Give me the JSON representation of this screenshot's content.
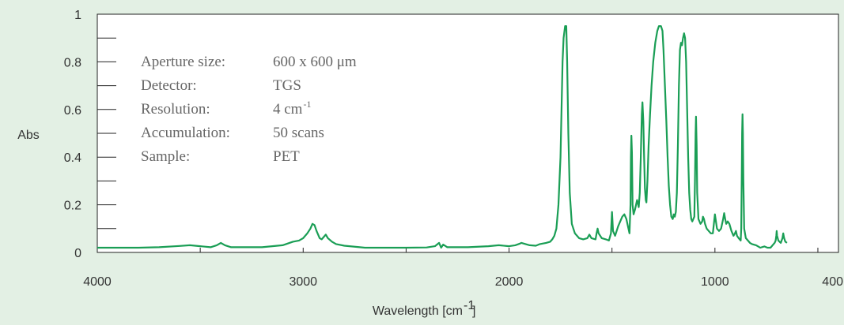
{
  "chart_data": {
    "type": "line",
    "title": "",
    "xlabel": "Wavelength [cm",
    "xlabel_sup": "-1",
    "xlabel_suffix": "]",
    "ylabel": "Abs",
    "xlim": [
      4000,
      400
    ],
    "ylim": [
      0,
      1
    ],
    "x_reversed": true,
    "x_ticks": [
      4000,
      3000,
      2000,
      1000,
      400
    ],
    "y_ticks": [
      0,
      0.2,
      0.4,
      0.6,
      0.8,
      1
    ],
    "x_tick_labels": [
      "4000",
      "3000",
      "2000",
      "1000",
      "400"
    ],
    "y_tick_labels": [
      "0",
      "0.2",
      "0.4",
      "0.6",
      "0.8",
      "1"
    ],
    "grid": false,
    "line_color": "#1a9e55",
    "series": [
      {
        "points": [
          [
            4000,
            0.02
          ],
          [
            3800,
            0.02
          ],
          [
            3700,
            0.022
          ],
          [
            3600,
            0.027
          ],
          [
            3550,
            0.03
          ],
          [
            3500,
            0.026
          ],
          [
            3450,
            0.022
          ],
          [
            3420,
            0.03
          ],
          [
            3400,
            0.04
          ],
          [
            3380,
            0.03
          ],
          [
            3350,
            0.022
          ],
          [
            3200,
            0.022
          ],
          [
            3100,
            0.03
          ],
          [
            3050,
            0.045
          ],
          [
            3020,
            0.05
          ],
          [
            3000,
            0.06
          ],
          [
            2980,
            0.08
          ],
          [
            2965,
            0.1
          ],
          [
            2955,
            0.12
          ],
          [
            2945,
            0.115
          ],
          [
            2935,
            0.09
          ],
          [
            2920,
            0.06
          ],
          [
            2910,
            0.055
          ],
          [
            2900,
            0.065
          ],
          [
            2890,
            0.075
          ],
          [
            2880,
            0.06
          ],
          [
            2860,
            0.045
          ],
          [
            2840,
            0.035
          ],
          [
            2800,
            0.028
          ],
          [
            2700,
            0.02
          ],
          [
            2500,
            0.02
          ],
          [
            2400,
            0.021
          ],
          [
            2360,
            0.026
          ],
          [
            2340,
            0.04
          ],
          [
            2330,
            0.02
          ],
          [
            2320,
            0.033
          ],
          [
            2300,
            0.022
          ],
          [
            2200,
            0.022
          ],
          [
            2100,
            0.026
          ],
          [
            2050,
            0.03
          ],
          [
            2000,
            0.026
          ],
          [
            1970,
            0.03
          ],
          [
            1950,
            0.036
          ],
          [
            1940,
            0.04
          ],
          [
            1920,
            0.035
          ],
          [
            1900,
            0.03
          ],
          [
            1870,
            0.028
          ],
          [
            1850,
            0.035
          ],
          [
            1820,
            0.04
          ],
          [
            1800,
            0.045
          ],
          [
            1790,
            0.055
          ],
          [
            1780,
            0.07
          ],
          [
            1770,
            0.1
          ],
          [
            1760,
            0.2
          ],
          [
            1750,
            0.4
          ],
          [
            1745,
            0.6
          ],
          [
            1740,
            0.8
          ],
          [
            1735,
            0.9
          ],
          [
            1728,
            0.95
          ],
          [
            1722,
            0.95
          ],
          [
            1718,
            0.8
          ],
          [
            1712,
            0.5
          ],
          [
            1705,
            0.25
          ],
          [
            1695,
            0.12
          ],
          [
            1680,
            0.08
          ],
          [
            1660,
            0.06
          ],
          [
            1640,
            0.055
          ],
          [
            1620,
            0.06
          ],
          [
            1610,
            0.075
          ],
          [
            1600,
            0.06
          ],
          [
            1580,
            0.055
          ],
          [
            1575,
            0.08
          ],
          [
            1570,
            0.1
          ],
          [
            1565,
            0.08
          ],
          [
            1550,
            0.06
          ],
          [
            1530,
            0.055
          ],
          [
            1515,
            0.05
          ],
          [
            1505,
            0.08
          ],
          [
            1500,
            0.17
          ],
          [
            1495,
            0.09
          ],
          [
            1485,
            0.07
          ],
          [
            1470,
            0.11
          ],
          [
            1460,
            0.13
          ],
          [
            1450,
            0.15
          ],
          [
            1440,
            0.16
          ],
          [
            1430,
            0.14
          ],
          [
            1420,
            0.1
          ],
          [
            1415,
            0.08
          ],
          [
            1410,
            0.2
          ],
          [
            1408,
            0.4
          ],
          [
            1406,
            0.49
          ],
          [
            1403,
            0.42
          ],
          [
            1400,
            0.2
          ],
          [
            1395,
            0.16
          ],
          [
            1388,
            0.18
          ],
          [
            1383,
            0.2
          ],
          [
            1378,
            0.22
          ],
          [
            1375,
            0.21
          ],
          [
            1370,
            0.19
          ],
          [
            1365,
            0.25
          ],
          [
            1360,
            0.4
          ],
          [
            1355,
            0.58
          ],
          [
            1352,
            0.63
          ],
          [
            1348,
            0.55
          ],
          [
            1344,
            0.4
          ],
          [
            1340,
            0.27
          ],
          [
            1336,
            0.22
          ],
          [
            1333,
            0.21
          ],
          [
            1328,
            0.3
          ],
          [
            1322,
            0.45
          ],
          [
            1315,
            0.58
          ],
          [
            1308,
            0.7
          ],
          [
            1300,
            0.8
          ],
          [
            1290,
            0.88
          ],
          [
            1280,
            0.93
          ],
          [
            1272,
            0.95
          ],
          [
            1262,
            0.95
          ],
          [
            1255,
            0.93
          ],
          [
            1250,
            0.85
          ],
          [
            1243,
            0.7
          ],
          [
            1236,
            0.55
          ],
          [
            1230,
            0.4
          ],
          [
            1224,
            0.28
          ],
          [
            1218,
            0.2
          ],
          [
            1212,
            0.15
          ],
          [
            1205,
            0.14
          ],
          [
            1200,
            0.16
          ],
          [
            1195,
            0.15
          ],
          [
            1190,
            0.17
          ],
          [
            1185,
            0.25
          ],
          [
            1180,
            0.45
          ],
          [
            1175,
            0.7
          ],
          [
            1170,
            0.85
          ],
          [
            1165,
            0.88
          ],
          [
            1160,
            0.87
          ],
          [
            1155,
            0.9
          ],
          [
            1150,
            0.92
          ],
          [
            1145,
            0.9
          ],
          [
            1140,
            0.8
          ],
          [
            1135,
            0.6
          ],
          [
            1130,
            0.4
          ],
          [
            1125,
            0.25
          ],
          [
            1120,
            0.18
          ],
          [
            1115,
            0.14
          ],
          [
            1110,
            0.13
          ],
          [
            1105,
            0.14
          ],
          [
            1100,
            0.15
          ],
          [
            1097,
            0.3
          ],
          [
            1094,
            0.5
          ],
          [
            1092,
            0.57
          ],
          [
            1089,
            0.45
          ],
          [
            1086,
            0.25
          ],
          [
            1080,
            0.14
          ],
          [
            1070,
            0.12
          ],
          [
            1062,
            0.13
          ],
          [
            1058,
            0.15
          ],
          [
            1053,
            0.14
          ],
          [
            1048,
            0.12
          ],
          [
            1040,
            0.1
          ],
          [
            1030,
            0.09
          ],
          [
            1020,
            0.08
          ],
          [
            1010,
            0.08
          ],
          [
            1005,
            0.12
          ],
          [
            1000,
            0.16
          ],
          [
            995,
            0.13
          ],
          [
            990,
            0.1
          ],
          [
            980,
            0.09
          ],
          [
            970,
            0.1
          ],
          [
            960,
            0.14
          ],
          [
            955,
            0.165
          ],
          [
            950,
            0.14
          ],
          [
            945,
            0.12
          ],
          [
            938,
            0.13
          ],
          [
            930,
            0.12
          ],
          [
            920,
            0.09
          ],
          [
            910,
            0.07
          ],
          [
            903,
            0.08
          ],
          [
            898,
            0.09
          ],
          [
            893,
            0.07
          ],
          [
            885,
            0.06
          ],
          [
            875,
            0.05
          ],
          [
            872,
            0.1
          ],
          [
            870,
            0.3
          ],
          [
            868,
            0.5
          ],
          [
            866,
            0.58
          ],
          [
            864,
            0.5
          ],
          [
            862,
            0.3
          ],
          [
            858,
            0.1
          ],
          [
            850,
            0.06
          ],
          [
            840,
            0.05
          ],
          [
            830,
            0.04
          ],
          [
            820,
            0.035
          ],
          [
            800,
            0.03
          ],
          [
            790,
            0.025
          ],
          [
            780,
            0.02
          ],
          [
            760,
            0.025
          ],
          [
            745,
            0.02
          ],
          [
            730,
            0.02
          ],
          [
            720,
            0.03
          ],
          [
            710,
            0.04
          ],
          [
            705,
            0.05
          ],
          [
            702,
            0.07
          ],
          [
            700,
            0.09
          ],
          [
            698,
            0.07
          ],
          [
            692,
            0.05
          ],
          [
            680,
            0.04
          ],
          [
            672,
            0.06
          ],
          [
            668,
            0.08
          ],
          [
            664,
            0.06
          ],
          [
            658,
            0.045
          ],
          [
            650,
            0.04
          ]
        ]
      }
    ]
  },
  "info": {
    "rows": [
      {
        "label": "Aperture size:",
        "value": "600 x 600 μm",
        "sup": ""
      },
      {
        "label": "Detector:",
        "value": "TGS",
        "sup": ""
      },
      {
        "label": "Resolution:",
        "value": "4 cm",
        "sup": "-1"
      },
      {
        "label": "Accumulation:",
        "value": "50 scans",
        "sup": ""
      },
      {
        "label": "Sample:",
        "value": "PET",
        "sup": ""
      }
    ]
  }
}
